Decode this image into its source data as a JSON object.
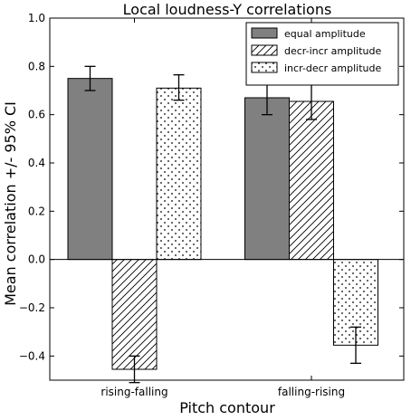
{
  "chart_data": {
    "type": "bar",
    "title": "Local loudness-Y correlations",
    "xlabel": "Pitch contour",
    "ylabel": "Mean correlation +/- 95% CI",
    "categories": [
      "rising-falling",
      "falling-rising"
    ],
    "ylim": [
      -0.5,
      1.0
    ],
    "yticks": [
      -0.4,
      -0.2,
      0.0,
      0.2,
      0.4,
      0.6,
      0.8,
      1.0
    ],
    "ytick_labels": [
      "−0.4",
      "−0.2",
      "0.0",
      "0.2",
      "0.4",
      "0.6",
      "0.8",
      "1.0"
    ],
    "legend_position": "top-right",
    "grid": false,
    "zero_line": true,
    "series": [
      {
        "name": "equal amplitude",
        "values": [
          0.75,
          0.67
        ],
        "ci_low": [
          0.7,
          0.6
        ],
        "ci_high": [
          0.8,
          0.74
        ],
        "fill": "#808080",
        "pattern": "solid"
      },
      {
        "name": "decr-incr amplitude",
        "values": [
          -0.455,
          0.655
        ],
        "ci_low": [
          -0.51,
          0.58
        ],
        "ci_high": [
          -0.4,
          0.73
        ],
        "fill": "#ffffff",
        "pattern": "diagonal-hatch"
      },
      {
        "name": "incr-decr amplitude",
        "values": [
          0.71,
          -0.355
        ],
        "ci_low": [
          0.66,
          -0.43
        ],
        "ci_high": [
          0.765,
          -0.28
        ],
        "fill": "#ffffff",
        "pattern": "dots"
      }
    ]
  }
}
